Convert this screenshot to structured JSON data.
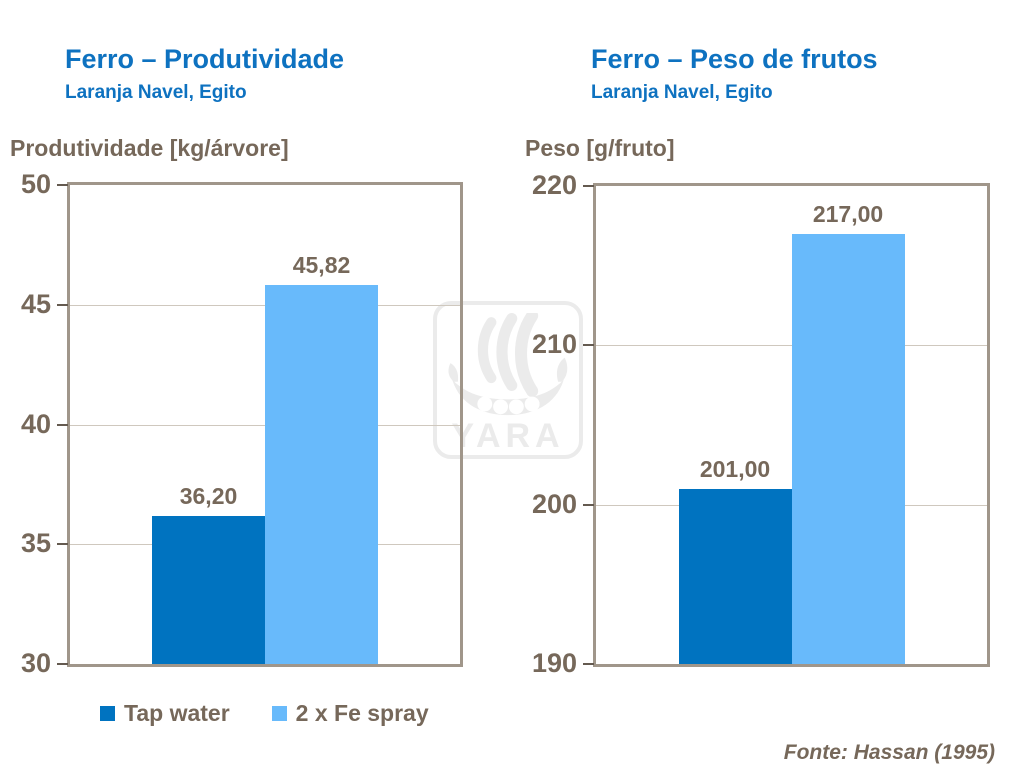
{
  "watermark": {
    "text": "YARA",
    "icon": "viking-ship-logo",
    "color": "#ebebeb"
  },
  "colors": {
    "title_blue": "#0e72c0",
    "text_taupe": "#76685a",
    "frame": "#a0968a",
    "gridline": "#cfc8be",
    "tap_water": "#0073c0",
    "fe_spray": "#68bafb"
  },
  "chart_data": [
    {
      "type": "bar",
      "title": "Ferro – Produtividade",
      "subtitle": "Laranja Navel, Egito",
      "ylabel": "Produtividade [kg/árvore]",
      "xlabel": "",
      "categories": [
        "Tap water",
        "2 x Fe spray"
      ],
      "values": [
        36.2,
        45.82
      ],
      "value_labels": [
        "36,20",
        "45,82"
      ],
      "bar_colors": [
        "#0073c0",
        "#68bafb"
      ],
      "ylim": [
        30,
        50
      ],
      "yticks": [
        50,
        45,
        40,
        35,
        30
      ],
      "grid": true,
      "legend_position": "bottom"
    },
    {
      "type": "bar",
      "title": "Ferro – Peso de frutos",
      "subtitle": "Laranja Navel, Egito",
      "ylabel": "Peso [g/fruto]",
      "xlabel": "",
      "categories": [
        "Tap water",
        "2 x Fe spray"
      ],
      "values": [
        201.0,
        217.0
      ],
      "value_labels": [
        "201,00",
        "217,00"
      ],
      "bar_colors": [
        "#0073c0",
        "#68bafb"
      ],
      "ylim": [
        190,
        220
      ],
      "yticks": [
        220,
        210,
        200,
        190
      ],
      "grid": true,
      "legend_position": "none"
    }
  ],
  "legend": {
    "items": [
      {
        "label": "Tap water",
        "color": "#0073c0"
      },
      {
        "label": "2 x Fe spray",
        "color": "#68bafb"
      }
    ]
  },
  "source": "Fonte: Hassan (1995)"
}
